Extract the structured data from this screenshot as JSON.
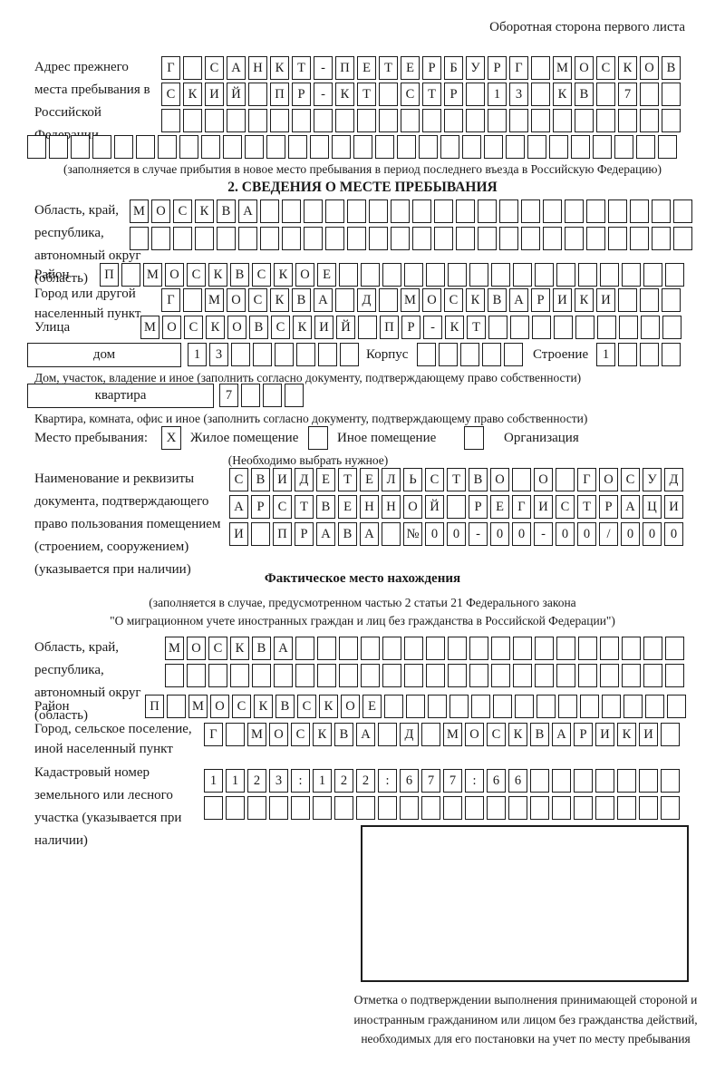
{
  "page_title": "Оборотная сторона первого листа",
  "prev_address": {
    "label": "Адрес прежнего места пребывания в Российской Федерации",
    "rows": [
      {
        "cells": "Г САНКТ-ПЕТЕРБУРГ МОСКОВ",
        "count": 24
      },
      {
        "cells": "СКИЙ ПР-КТ СТР 13 КВ 7",
        "count": 24
      },
      {
        "cells": "",
        "count": 24
      },
      {
        "cells": "",
        "count": 30
      }
    ],
    "note": "(заполняется в случае прибытия в новое место пребывания в период последнего въезда в Российскую Федерацию)"
  },
  "section2": {
    "title": "2. СВЕДЕНИЯ О МЕСТЕ ПРЕБЫВАНИЯ",
    "oblast": {
      "label": "Область, край, республика, автономный округ (область)",
      "rows": [
        {
          "cells": "МОСКВА",
          "count": 26
        },
        {
          "cells": "",
          "count": 26
        }
      ]
    },
    "raion": {
      "label": "Район",
      "row": {
        "cells": "П МОСКВСКОЕ",
        "count": 27
      }
    },
    "gorod": {
      "label": "Город или другой населенный пункт",
      "row": {
        "cells": "Г МОСКВА Д МОСКВАРИКИ",
        "count": 24
      }
    },
    "ulitsa": {
      "label": "Улица",
      "row": {
        "cells": "МОСКОВСКИЙ ПР-КТ",
        "count": 25
      }
    },
    "dom_line": {
      "dom_box_label": "дом",
      "dom_cells": {
        "cells": "13",
        "count": 8
      },
      "korpus_label": "Корпус",
      "korpus_cells": {
        "cells": "",
        "count": 5
      },
      "stroenie_label": "Строение",
      "stroenie_cells": {
        "cells": "1",
        "count": 4
      },
      "note": "Дом, участок, владение и иное (заполнить согласно документу, подтверждающему право собственности)"
    },
    "kvartira_line": {
      "box_label": "квартира",
      "cells": {
        "cells": "7",
        "count": 4
      },
      "note": "Квартира, комната, офис и иное (заполнить согласно документу, подтверждающему право собственности)"
    },
    "stay_place": {
      "label": "Место пребывания:",
      "options": [
        {
          "label": "Жилое помещение",
          "mark": "X"
        },
        {
          "label": "Иное помещение",
          "mark": ""
        },
        {
          "label": "Организация",
          "mark": ""
        }
      ],
      "note": "(Необходимо выбрать нужное)"
    },
    "doc": {
      "label": "Наименование и реквизиты документа, подтверждающего право пользования помещением (строением, сооружением) (указывается при наличии)",
      "rows": [
        {
          "cells": "СВИДЕТЕЛЬСТВО О ГОСУД",
          "count": 21
        },
        {
          "cells": "АРСТВЕННОЙ РЕГИСТРАЦИ",
          "count": 21
        },
        {
          "cells": "И ПРАВА №00-00-00/000",
          "count": 21
        }
      ]
    }
  },
  "actual_location": {
    "title": "Фактическое место нахождения",
    "note_line1": "(заполняется в случае, предусмотренном частью 2 статьи 21 Федерального закона",
    "note_line2": "\"О миграционном учете иностранных граждан и лиц без гражданства в Российской Федерации\")",
    "oblast": {
      "label": "Область, край, республика, автономный округ (область)",
      "rows": [
        {
          "cells": "МОСКВА",
          "count": 24
        },
        {
          "cells": "",
          "count": 24
        }
      ]
    },
    "raion": {
      "label": "Район",
      "row": {
        "cells": "П МОСКВСКОЕ",
        "count": 25
      }
    },
    "gorod": {
      "label": "Город, сельское поселение, иной населенный пункт",
      "row": {
        "cells": "Г МОСКВА Д МОСКВАРИКИ",
        "count": 22
      }
    },
    "cadastre": {
      "label": "Кадастровый номер земельного или лесного участка (указывается при наличии)",
      "rows": [
        {
          "cells": "1123:122:677:66",
          "count": 22
        },
        {
          "cells": "",
          "count": 22
        }
      ]
    },
    "stamp_caption": "Отметка о подтверждении выполнения принимающей стороной и иностранным гражданином или лицом без гражданства действий, необходимых для его постановки на учет по месту пребывания"
  }
}
